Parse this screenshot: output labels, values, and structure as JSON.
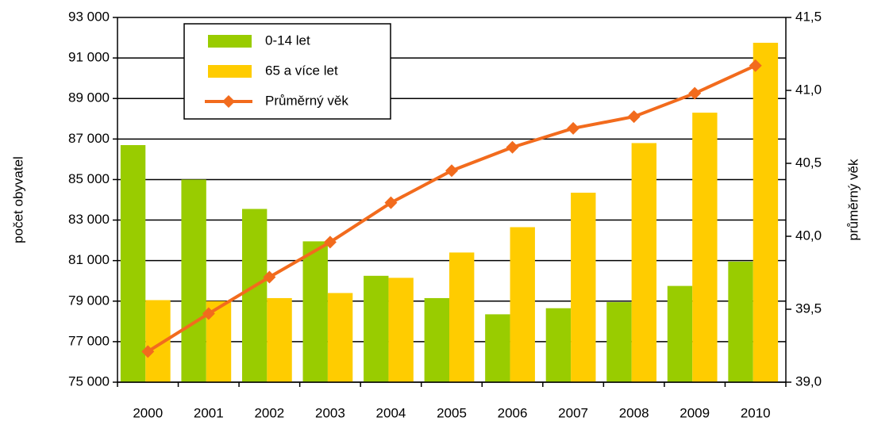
{
  "chart_data": {
    "type": "bar",
    "categories": [
      "2000",
      "2001",
      "2002",
      "2003",
      "2004",
      "2005",
      "2006",
      "2007",
      "2008",
      "2009",
      "2010"
    ],
    "series": [
      {
        "name": "0-14 let",
        "color": "#99cc00",
        "values": [
          86700,
          85000,
          83550,
          81950,
          80250,
          79150,
          78350,
          78650,
          78950,
          79750,
          80950
        ]
      },
      {
        "name": "65 a více let",
        "color": "#ffcc00",
        "values": [
          79050,
          79000,
          79150,
          79400,
          80150,
          81400,
          82650,
          84350,
          86800,
          88300,
          91750
        ]
      },
      {
        "name": "Průměrný věk",
        "color": "#f26b1d",
        "type": "line",
        "axis": "y2",
        "values": [
          39.21,
          39.47,
          39.72,
          39.96,
          40.23,
          40.45,
          40.61,
          40.74,
          40.82,
          40.98,
          41.17
        ]
      }
    ],
    "y_label": "počet obyvatel",
    "y2_label": "průměrný věk",
    "ylim": [
      75000,
      93000
    ],
    "yticks": [
      {
        "value": 75000,
        "label": "75 000"
      },
      {
        "value": 77000,
        "label": "77 000"
      },
      {
        "value": 79000,
        "label": "79 000"
      },
      {
        "value": 81000,
        "label": "81 000"
      },
      {
        "value": 83000,
        "label": "83 000"
      },
      {
        "value": 85000,
        "label": "85 000"
      },
      {
        "value": 87000,
        "label": "87 000"
      },
      {
        "value": 89000,
        "label": "89 000"
      },
      {
        "value": 91000,
        "label": "91 000"
      },
      {
        "value": 93000,
        "label": "93 000"
      }
    ],
    "y2lim": [
      39.0,
      41.5
    ],
    "y2ticks": [
      {
        "value": 39.0,
        "label": "39,0"
      },
      {
        "value": 39.5,
        "label": "39,5"
      },
      {
        "value": 40.0,
        "label": "40,0"
      },
      {
        "value": 40.5,
        "label": "40,5"
      },
      {
        "value": 41.0,
        "label": "41,0"
      },
      {
        "value": 41.5,
        "label": "41,5"
      }
    ],
    "grid": true,
    "legend": "upper left"
  }
}
